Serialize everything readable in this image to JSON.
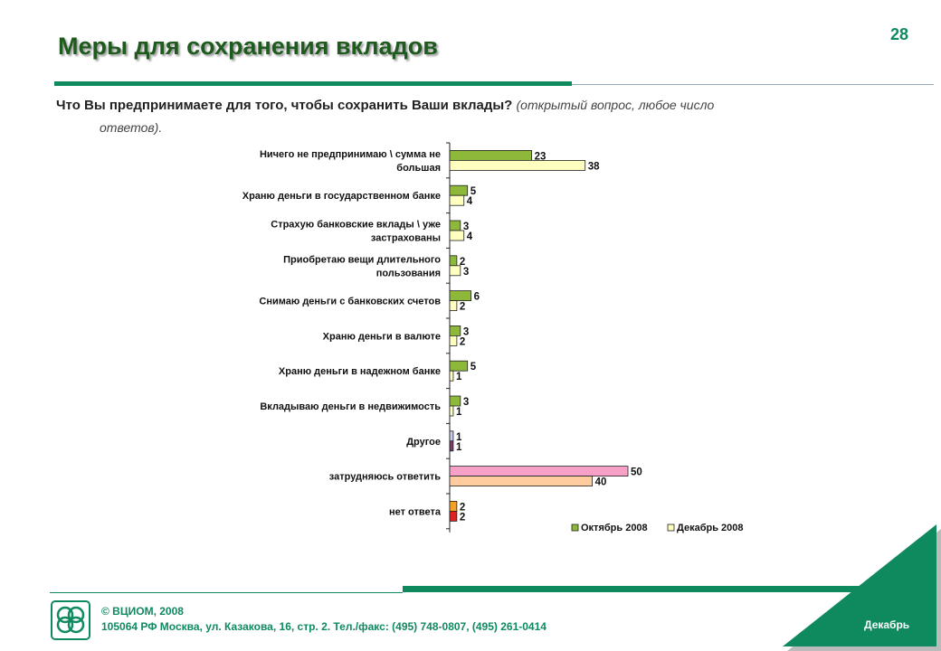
{
  "slide": {
    "title": "Меры для сохранения вкладов",
    "page_number": "28",
    "question": "Что Вы предпринимаете для того, чтобы сохранить Ваши вклады?",
    "question_note_open": "(",
    "question_note_1": "открытый вопрос, любое число",
    "question_note_2": "ответов)."
  },
  "chart_data": {
    "type": "bar",
    "orientation": "horizontal",
    "xlim": [
      0,
      50
    ],
    "grid": false,
    "legend_position": "bottom-right",
    "categories": [
      "Ничего не предпринимаю \\ сумма не большая",
      "Храню деньги в государственном банке",
      "Страхую банковские вклады \\ уже застрахованы",
      "Приобретаю вещи длительного пользования",
      "Снимаю деньги с банковских счетов",
      "Храню деньги в валюте",
      "Храню деньги в надежном банке",
      "Вкладываю деньги в недвижимость",
      "Другое",
      "затрудняюсь ответить",
      "нет ответа"
    ],
    "category_lines": [
      [
        "Ничего не предпринимаю \\ сумма не",
        "большая"
      ],
      [
        "Храню деньги в государственном банке"
      ],
      [
        "Страхую банковские вклады \\ уже",
        "застрахованы"
      ],
      [
        "Приобретаю вещи длительного",
        "пользования"
      ],
      [
        "Снимаю деньги с банковских счетов"
      ],
      [
        "Храню деньги в валюте"
      ],
      [
        "Храню деньги в надежном банке"
      ],
      [
        "Вкладываю деньги в недвижимость"
      ],
      [
        "Другое"
      ],
      [
        "затрудняюсь ответить"
      ],
      [
        "нет ответа"
      ]
    ],
    "series": [
      {
        "name": "Октябрь 2008",
        "color": "#8db83a",
        "values": [
          23,
          5,
          3,
          2,
          6,
          3,
          5,
          3,
          1,
          50,
          2
        ],
        "point_colors": [
          "#8db83a",
          "#8db83a",
          "#8db83a",
          "#8db83a",
          "#8db83a",
          "#8db83a",
          "#8db83a",
          "#8db83a",
          "#c8c8f0",
          "#f7a0c8",
          "#f5a020"
        ]
      },
      {
        "name": "Декабрь 2008",
        "color": "#ffffc0",
        "values": [
          38,
          4,
          4,
          3,
          2,
          2,
          1,
          1,
          1,
          40,
          2
        ],
        "point_colors": [
          "#ffffc0",
          "#ffffc0",
          "#ffffc0",
          "#ffffc0",
          "#ffffc0",
          "#ffffc0",
          "#ffffc0",
          "#ffffc0",
          "#7a3a6a",
          "#ffcca0",
          "#e02020"
        ]
      }
    ]
  },
  "footer": {
    "copyright": "© ВЦИОМ, 2008",
    "address": "105064  РФ Москва, ул. Казакова, 16, стр. 2.  Тел./факс: (495) 748-0807,  (495) 261-0414",
    "month": "Декабрь",
    "logo_text": "ВЦИОМ"
  }
}
